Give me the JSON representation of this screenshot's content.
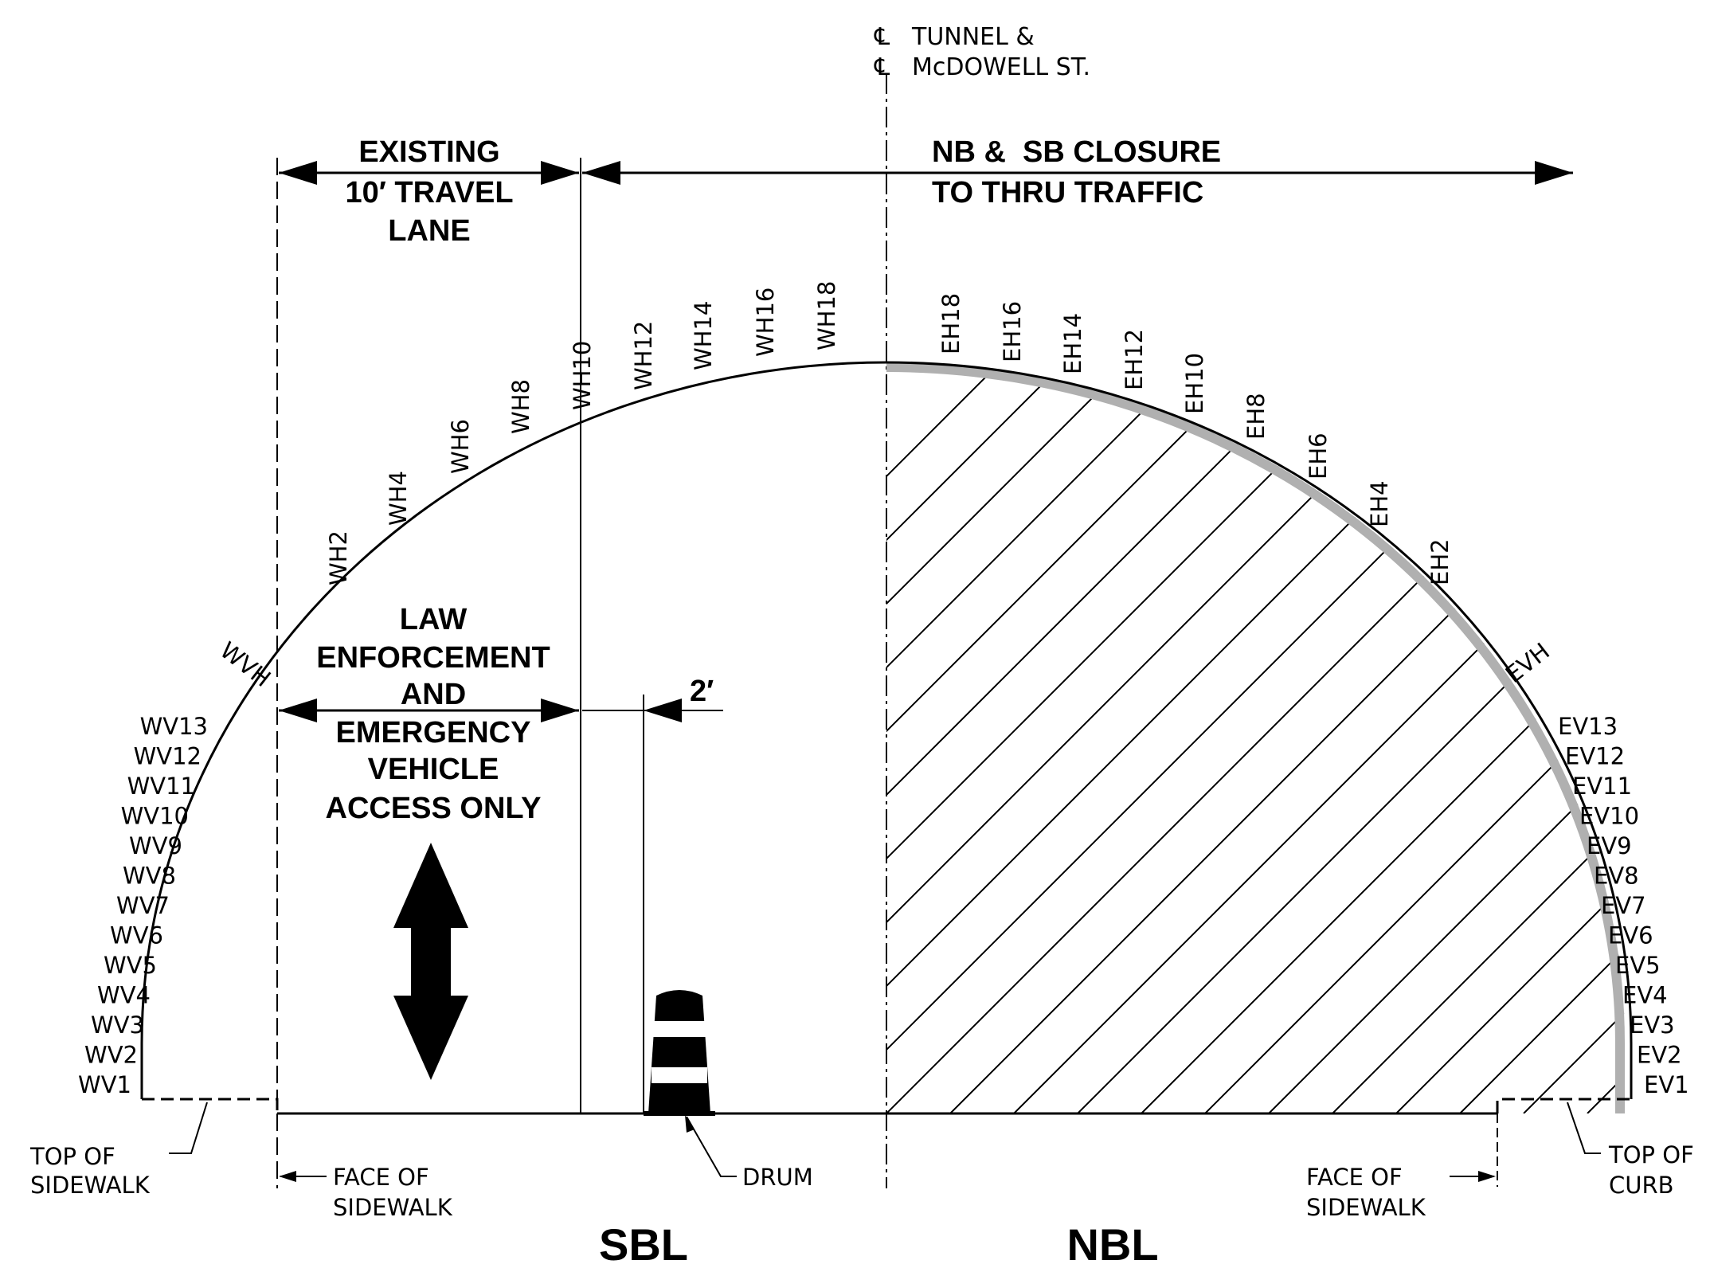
{
  "centerline": {
    "symbol": "℄",
    "line1": "TUNNEL &",
    "line2": "McDOWELL ST."
  },
  "existing_lane": {
    "line1": "EXISTING",
    "line2": "10′ TRAVEL",
    "line3": "LANE"
  },
  "closure": {
    "line1": "NB &  SB CLOSURE",
    "line2": "TO THRU TRAFFIC"
  },
  "law_enforcement": {
    "line1": "LAW",
    "line2": "ENFORCEMENT",
    "line3": "AND",
    "line4": "EMERGENCY",
    "line5": "VEHICLE",
    "line6": "ACCESS ONLY"
  },
  "offset_dim": "2′",
  "callouts": {
    "top_of_sidewalk_1": "TOP OF",
    "top_of_sidewalk_2": "SIDEWALK",
    "face_sidewalk_left_1": "FACE OF",
    "face_sidewalk_left_2": "SIDEWALK",
    "drum": "DRUM",
    "face_sidewalk_right_1": "FACE OF",
    "face_sidewalk_right_2": "SIDEWALK",
    "top_of_curb_1": "TOP OF",
    "top_of_curb_2": "CURB"
  },
  "bound_labels": {
    "sbl": "SBL",
    "nbl": "NBL"
  },
  "west_vertical": [
    "WV1",
    "WV2",
    "WV3",
    "WV4",
    "WV5",
    "WV6",
    "WV7",
    "WV8",
    "WV9",
    "WV10",
    "WV11",
    "WV12",
    "WV13"
  ],
  "east_vertical": [
    "EV1",
    "EV2",
    "EV3",
    "EV4",
    "EV5",
    "EV6",
    "EV7",
    "EV8",
    "EV9",
    "EV10",
    "EV11",
    "EV12",
    "EV13"
  ],
  "west_haunch": "WVH",
  "east_haunch": "EVH",
  "west_horizontal": [
    "WH2",
    "WH4",
    "WH6",
    "WH8",
    "WH10",
    "WH12",
    "WH14",
    "WH16",
    "WH18"
  ],
  "east_horizontal": [
    "EH2",
    "EH4",
    "EH6",
    "EH8",
    "EH10",
    "EH12",
    "EH14",
    "EH16",
    "EH18"
  ],
  "colors": {
    "ink": "#000000",
    "closure_band": "#b0b0b0"
  }
}
